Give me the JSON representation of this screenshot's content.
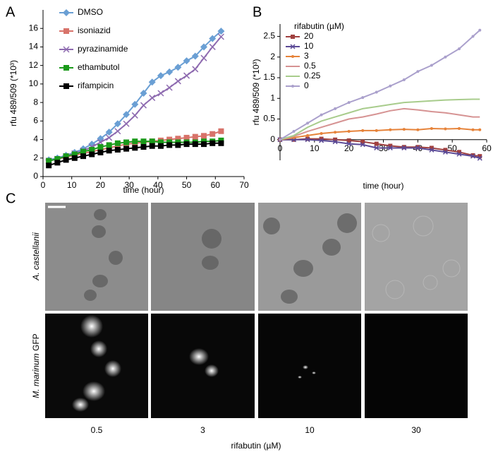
{
  "chart_data": [
    {
      "type": "line",
      "panel": "A",
      "xlabel": "time (hour)",
      "ylabel": "rfu 489/509 (*10³)",
      "legend": "upper left",
      "x": [
        2,
        5,
        8,
        11,
        14,
        17,
        20,
        23,
        26,
        29,
        32,
        35,
        38,
        41,
        44,
        47,
        50,
        53,
        56,
        59,
        62
      ],
      "series": [
        {
          "name": "DMSO",
          "color": "#6a9fd4",
          "marker": "diamond",
          "values": [
            1.8,
            2.0,
            2.3,
            2.6,
            3.0,
            3.5,
            4.1,
            4.8,
            5.7,
            6.7,
            7.8,
            9.0,
            10.2,
            10.9,
            11.3,
            11.8,
            12.5,
            13.0,
            14.0,
            14.9,
            15.7
          ]
        },
        {
          "name": "isoniazid",
          "color": "#d8736a",
          "marker": "square",
          "values": [
            1.7,
            1.9,
            2.1,
            2.3,
            2.5,
            2.7,
            2.9,
            3.1,
            3.3,
            3.5,
            3.6,
            3.7,
            3.8,
            3.9,
            4.0,
            4.1,
            4.2,
            4.3,
            4.4,
            4.6,
            4.9
          ]
        },
        {
          "name": "pyrazinamide",
          "color": "#8e6bb0",
          "marker": "cross",
          "values": [
            1.7,
            1.9,
            2.2,
            2.5,
            2.8,
            3.2,
            3.7,
            4.2,
            4.9,
            5.7,
            6.6,
            7.7,
            8.5,
            9.0,
            9.6,
            10.3,
            10.9,
            11.6,
            12.8,
            14.0,
            15.1
          ]
        },
        {
          "name": "ethambutol",
          "color": "#1a9a1a",
          "marker": "square",
          "values": [
            1.7,
            1.9,
            2.2,
            2.4,
            2.7,
            2.9,
            3.2,
            3.4,
            3.6,
            3.7,
            3.8,
            3.8,
            3.8,
            3.7,
            3.7,
            3.7,
            3.7,
            3.7,
            3.8,
            3.8,
            3.9
          ]
        },
        {
          "name": "rifampicin",
          "color": "#000000",
          "marker": "square",
          "values": [
            1.2,
            1.5,
            1.8,
            2.0,
            2.2,
            2.4,
            2.6,
            2.8,
            2.9,
            3.0,
            3.1,
            3.2,
            3.3,
            3.3,
            3.4,
            3.4,
            3.5,
            3.5,
            3.5,
            3.6,
            3.6
          ]
        }
      ],
      "xlim": [
        0,
        70
      ],
      "xticks": [
        0,
        10,
        20,
        30,
        40,
        50,
        60,
        70
      ],
      "ylim": [
        0,
        18
      ],
      "yticks": [
        0,
        2,
        4,
        6,
        8,
        10,
        12,
        14,
        16
      ]
    },
    {
      "type": "line",
      "panel": "B",
      "xlabel": "time (hour)",
      "ylabel": "rfu 489/509 (*10³)",
      "legend_title": "rifabutin (µM)",
      "legend": "upper left",
      "x": [
        0,
        4,
        8,
        12,
        16,
        20,
        24,
        28,
        32,
        36,
        40,
        44,
        48,
        52,
        56,
        58
      ],
      "series": [
        {
          "name": "20",
          "color": "#a0403f",
          "marker": "square",
          "values": [
            0,
            0,
            0.02,
            0.02,
            0,
            -0.02,
            -0.05,
            -0.1,
            -0.15,
            -0.18,
            -0.18,
            -0.2,
            -0.25,
            -0.3,
            -0.38,
            -0.4
          ]
        },
        {
          "name": "10",
          "color": "#5b4a96",
          "marker": "cross",
          "values": [
            0,
            0,
            0,
            -0.02,
            -0.05,
            -0.1,
            -0.12,
            -0.2,
            -0.2,
            -0.2,
            -0.2,
            -0.25,
            -0.3,
            -0.35,
            -0.4,
            -0.45
          ]
        },
        {
          "name": "3",
          "color": "#e6833a",
          "marker": "circle",
          "values": [
            0,
            0.05,
            0.1,
            0.15,
            0.18,
            0.2,
            0.22,
            0.22,
            0.24,
            0.25,
            0.24,
            0.27,
            0.26,
            0.27,
            0.24,
            0.24
          ]
        },
        {
          "name": "0.5",
          "color": "#d69393",
          "marker": "none",
          "values": [
            0,
            0.08,
            0.2,
            0.3,
            0.4,
            0.5,
            0.55,
            0.62,
            0.7,
            0.75,
            0.72,
            0.68,
            0.65,
            0.6,
            0.55,
            0.55
          ]
        },
        {
          "name": "0.25",
          "color": "#a8cc8c",
          "marker": "none",
          "values": [
            0,
            0.1,
            0.3,
            0.45,
            0.55,
            0.65,
            0.75,
            0.8,
            0.85,
            0.9,
            0.92,
            0.94,
            0.96,
            0.97,
            0.98,
            0.98
          ]
        },
        {
          "name": "0",
          "color": "#aaa0cc",
          "marker": "circle",
          "values": [
            0,
            0.2,
            0.4,
            0.6,
            0.75,
            0.9,
            1.02,
            1.15,
            1.3,
            1.45,
            1.65,
            1.8,
            2.0,
            2.2,
            2.5,
            2.65
          ]
        }
      ],
      "xlim": [
        0,
        60
      ],
      "xticks": [
        0,
        10,
        20,
        30,
        40,
        50,
        60
      ],
      "ylim": [
        -0.5,
        2.8
      ],
      "yticks": [
        0,
        0.5,
        1,
        1.5,
        2,
        2.5
      ]
    }
  ],
  "panel_c": {
    "panel": "C",
    "row_labels": [
      {
        "species": "A. castellanii"
      },
      {
        "species": "M. marinum",
        "channel": "GFP"
      }
    ],
    "column_labels": [
      0.5,
      3,
      10,
      30
    ],
    "xlabel": "rifabutin (µM)"
  }
}
